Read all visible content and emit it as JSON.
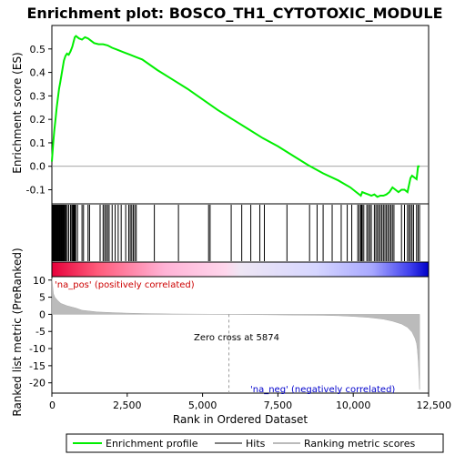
{
  "chart_data": {
    "type": "line",
    "title": "Enrichment plot: BOSCO_TH1_CYTOTOXIC_MODULE",
    "top_panel": {
      "ylabel": "Enrichment score (ES)",
      "ylim": [
        -0.16,
        0.6
      ],
      "yticks": [
        -0.1,
        0.0,
        0.1,
        0.2,
        0.3,
        0.4,
        0.5
      ],
      "ytick_labels": [
        "-0.1",
        "0.0",
        "0.1",
        "0.2",
        "0.3",
        "0.4",
        "0.5"
      ],
      "series": [
        {
          "name": "Enrichment profile",
          "color": "#00ee00",
          "x": [
            0,
            40,
            80,
            120,
            160,
            200,
            240,
            280,
            320,
            360,
            400,
            450,
            500,
            560,
            620,
            680,
            720,
            760,
            800,
            900,
            1000,
            1100,
            1200,
            1300,
            1400,
            1550,
            1700,
            1850,
            2000,
            2200,
            2400,
            2600,
            2800,
            3000,
            3500,
            4000,
            4500,
            5000,
            5500,
            6000,
            6500,
            7000,
            7500,
            8000,
            8500,
            9000,
            9500,
            9900,
            10100,
            10250,
            10300,
            10400,
            10500,
            10600,
            10700,
            10800,
            10900,
            11000,
            11100,
            11200,
            11300,
            11400,
            11500,
            11600,
            11700,
            11800,
            11900,
            11950,
            12000,
            12100,
            12150,
            12200
          ],
          "y": [
            0.02,
            0.09,
            0.15,
            0.2,
            0.25,
            0.29,
            0.33,
            0.36,
            0.39,
            0.42,
            0.45,
            0.47,
            0.48,
            0.475,
            0.49,
            0.51,
            0.53,
            0.55,
            0.555,
            0.545,
            0.54,
            0.55,
            0.545,
            0.535,
            0.525,
            0.52,
            0.52,
            0.515,
            0.505,
            0.495,
            0.485,
            0.475,
            0.465,
            0.455,
            0.41,
            0.37,
            0.33,
            0.285,
            0.24,
            0.2,
            0.16,
            0.12,
            0.085,
            0.045,
            0.005,
            -0.03,
            -0.06,
            -0.09,
            -0.11,
            -0.125,
            -0.11,
            -0.115,
            -0.12,
            -0.125,
            -0.12,
            -0.13,
            -0.125,
            -0.125,
            -0.12,
            -0.11,
            -0.09,
            -0.1,
            -0.11,
            -0.1,
            -0.1,
            -0.11,
            -0.05,
            -0.04,
            -0.045,
            -0.055,
            0.0,
            0.0
          ]
        }
      ],
      "zero_line": true
    },
    "hits_panel": {
      "hit_positions": [
        10,
        30,
        50,
        70,
        90,
        110,
        130,
        150,
        170,
        190,
        210,
        230,
        250,
        270,
        290,
        310,
        330,
        350,
        370,
        390,
        410,
        440,
        470,
        510,
        560,
        620,
        660,
        690,
        710,
        730,
        750,
        770,
        790,
        850,
        1000,
        1050,
        1200,
        1250,
        1600,
        1700,
        1750,
        1800,
        1850,
        1900,
        2000,
        2100,
        2200,
        2300,
        2450,
        2550,
        2600,
        2650,
        2700,
        2750,
        2800,
        3400,
        4200,
        5200,
        5250,
        5950,
        6300,
        6600,
        6900,
        7050,
        7800,
        8550,
        8800,
        9000,
        9300,
        9600,
        9800,
        9950,
        10150,
        10200,
        10250,
        10280,
        10300,
        10350,
        10450,
        10500,
        10550,
        10600,
        10700,
        10750,
        10800,
        10850,
        10900,
        10950,
        11000,
        11050,
        11100,
        11150,
        11200,
        11250,
        11300,
        11350,
        11600,
        11700,
        11800,
        11850,
        11900,
        11950,
        12000,
        12100,
        12150,
        12200
      ]
    },
    "bottom_panel": {
      "ylabel": "Ranked list metric (PreRanked)",
      "xlabel": "Rank in Ordered Dataset",
      "ylim": [
        -23,
        11
      ],
      "yticks": [
        10,
        5,
        0,
        -5,
        -10,
        -15,
        -20
      ],
      "ytick_labels": [
        "10",
        "5",
        "0",
        "-5",
        "-10",
        "-15",
        "-20"
      ],
      "xlim": [
        0,
        12500
      ],
      "xticks": [
        0,
        2500,
        5000,
        7500,
        10000,
        12500
      ],
      "xtick_labels": [
        "0",
        "2,500",
        "5,000",
        "7,500",
        "10,000",
        "12,500"
      ],
      "metric_x": [
        0,
        50,
        100,
        200,
        300,
        500,
        800,
        1000,
        1500,
        2000,
        2500,
        3000,
        4000,
        5000,
        5874,
        7000,
        8000,
        9000,
        9500,
        10000,
        10500,
        11000,
        11300,
        11600,
        11800,
        11950,
        12050,
        12100,
        12130,
        12160,
        12180,
        12200
      ],
      "metric_y": [
        10.5,
        6.0,
        5.0,
        4.0,
        3.2,
        2.5,
        1.8,
        1.2,
        0.7,
        0.5,
        0.35,
        0.25,
        0.12,
        0.05,
        0.0,
        -0.1,
        -0.2,
        -0.3,
        -0.4,
        -0.6,
        -0.9,
        -1.4,
        -2.0,
        -2.8,
        -3.8,
        -5.2,
        -7.0,
        -8.5,
        -10.5,
        -14.0,
        -18.0,
        -22.0
      ],
      "zero_cross_label": "Zero cross at 5874",
      "zero_cross": 5874,
      "pos_label": "'na_pos' (positively correlated)",
      "neg_label": "'na_neg' (negatively correlated)"
    },
    "legend": {
      "entries": [
        {
          "label": "Enrichment profile",
          "color": "#00ee00"
        },
        {
          "label": "Hits",
          "color": "#000000"
        },
        {
          "label": "Ranking metric scores",
          "color": "#bbbbbb"
        }
      ],
      "placement": "bottom"
    },
    "colors": {
      "profile": "#00ee00",
      "hits": "#000000",
      "metric_fill": "#bbbbbb",
      "pos_label": "#cc0000",
      "neg_label": "#0000cc"
    }
  }
}
